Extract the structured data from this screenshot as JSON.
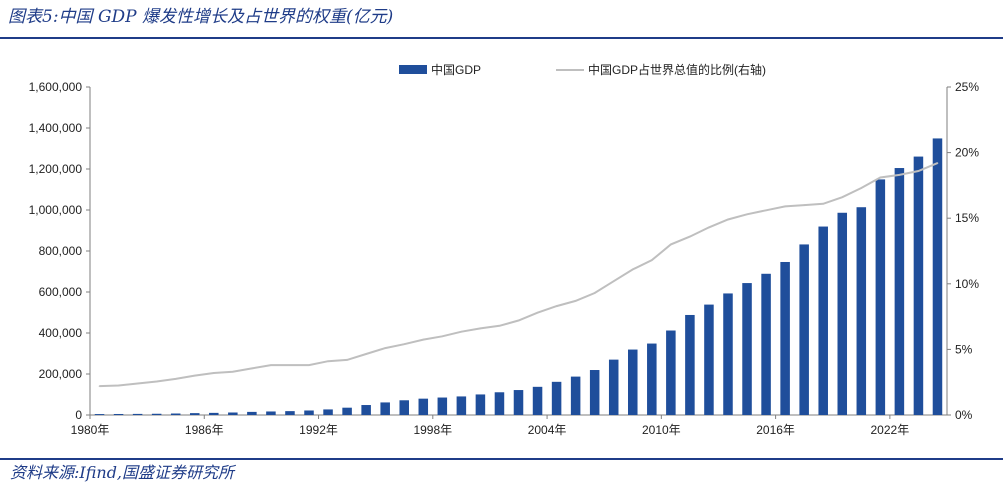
{
  "title": "图表5:中国 GDP 爆发性增长及占世界的权重(亿元)",
  "source": "资料来源:Ifind,国盛证券研究所",
  "colors": {
    "accent": "#1f3c88",
    "bar": "#1f4e9b",
    "line": "#bfbfbf",
    "axis": "#7f7f7f"
  },
  "chart_data": {
    "type": "bar",
    "legend_position": "top",
    "grid": false,
    "x": [
      1980,
      1981,
      1982,
      1983,
      1984,
      1985,
      1986,
      1987,
      1988,
      1989,
      1990,
      1991,
      1992,
      1993,
      1994,
      1995,
      1996,
      1997,
      1998,
      1999,
      2000,
      2001,
      2002,
      2003,
      2004,
      2005,
      2006,
      2007,
      2008,
      2009,
      2010,
      2011,
      2012,
      2013,
      2014,
      2015,
      2016,
      2017,
      2018,
      2019,
      2020,
      2021,
      2022,
      2023,
      2024
    ],
    "x_tick_labels": [
      "1980年",
      "1986年",
      "1992年",
      "1998年",
      "2004年",
      "2010年",
      "2016年",
      "2022年"
    ],
    "x_tick_years": [
      1980,
      1986,
      1992,
      1998,
      2004,
      2010,
      2016,
      2022
    ],
    "y_left": {
      "min": 0,
      "max": 1600000,
      "tick_labels": [
        "0",
        "200,000",
        "400,000",
        "600,000",
        "800,000",
        "1,000,000",
        "1,200,000",
        "1,400,000",
        "1,600,000"
      ],
      "tick_values": [
        0,
        200000,
        400000,
        600000,
        800000,
        1000000,
        1200000,
        1400000,
        1600000
      ]
    },
    "y_right": {
      "min": 0,
      "max": 25,
      "tick_labels": [
        "0%",
        "5%",
        "10%",
        "15%",
        "20%",
        "25%"
      ],
      "tick_values": [
        0,
        5,
        10,
        15,
        20,
        25
      ]
    },
    "series": [
      {
        "name": "中国GDP",
        "type": "bar",
        "axis": "left",
        "values": [
          4588,
          4936,
          5373,
          6021,
          7279,
          9099,
          10376,
          12175,
          15180,
          17180,
          18873,
          22006,
          27195,
          35673,
          48638,
          61340,
          71814,
          79715,
          85196,
          90564,
          100280,
          110863,
          121717,
          137422,
          161840,
          187319,
          219439,
          270092,
          319245,
          348518,
          412119,
          487940,
          538580,
          592963,
          643563,
          688858,
          746395,
          832036,
          919281,
          986515,
          1013567,
          1149237,
          1204724,
          1260582,
          1349084
        ]
      },
      {
        "name": "中国GDP占世界总值的比例(右轴)",
        "type": "line",
        "axis": "right",
        "values": [
          2.2,
          2.25,
          2.4,
          2.55,
          2.75,
          3.0,
          3.2,
          3.3,
          3.55,
          3.8,
          3.8,
          3.8,
          4.1,
          4.2,
          4.65,
          5.1,
          5.4,
          5.75,
          6.0,
          6.35,
          6.6,
          6.8,
          7.2,
          7.8,
          8.3,
          8.7,
          9.3,
          10.2,
          11.1,
          11.8,
          13.0,
          13.6,
          14.3,
          14.9,
          15.3,
          15.6,
          15.9,
          16.0,
          16.1,
          16.6,
          17.3,
          18.1,
          18.3,
          18.6,
          19.2
        ]
      }
    ]
  }
}
